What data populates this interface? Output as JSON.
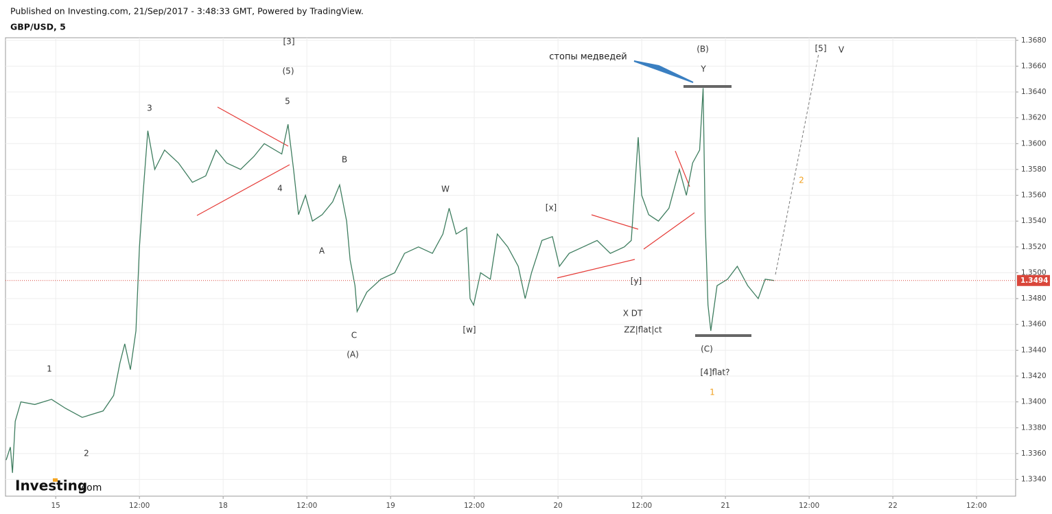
{
  "header": {
    "published": "Published on Investing.com, 21/Sep/2017 - 3:48:33 GMT, Powered by TradingView.",
    "symbol": "GBP/USD, 5",
    "logo": "Investing",
    "logo_suffix": ".com"
  },
  "chart_data": {
    "type": "line",
    "x": [
      -7.1,
      -6.5,
      -6.2,
      -5.8,
      -5.0,
      -3.0,
      -0.6,
      1.4,
      3.8,
      6.8,
      8.3,
      9.2,
      9.9,
      10.7,
      11.5,
      12.0,
      12.5,
      13.2,
      14.2,
      15.6,
      17.6,
      19.6,
      21.5,
      23.0,
      24.5,
      26.5,
      28.4,
      29.9,
      32.4,
      33.3,
      34.1,
      34.8,
      35.8,
      36.8,
      38.2,
      39.7,
      40.7,
      41.7,
      42.2,
      42.9,
      43.2,
      44.6,
      46.6,
      48.6,
      50.0,
      52.0,
      54.0,
      55.5,
      56.4,
      57.4,
      58.9,
      59.4,
      59.9,
      60.9,
      62.3,
      63.3,
      64.8,
      66.3,
      67.3,
      68.2,
      69.7,
      71.2,
      72.2,
      73.6,
      75.6,
      77.6,
      79.5,
      81.5,
      82.5,
      83.5,
      84.0,
      85.0,
      86.4,
      87.9,
      89.4,
      90.4,
      91.3,
      92.3,
      92.8,
      93.1,
      93.5,
      93.9,
      94.8,
      96.3,
      97.7,
      99.2,
      100.7,
      101.7,
      103.0
    ],
    "series": [
      {
        "name": "GBP/USD",
        "color": "#3e7d5f",
        "values": [
          1.3355,
          1.3365,
          1.3345,
          1.3385,
          1.34,
          1.3398,
          1.3402,
          1.3395,
          1.3388,
          1.3393,
          1.3405,
          1.343,
          1.3445,
          1.3425,
          1.3455,
          1.352,
          1.356,
          1.361,
          1.358,
          1.3595,
          1.3585,
          1.357,
          1.3575,
          1.3595,
          1.3585,
          1.358,
          1.359,
          1.36,
          1.3592,
          1.3615,
          1.358,
          1.3545,
          1.356,
          1.354,
          1.3545,
          1.3555,
          1.3568,
          1.354,
          1.351,
          1.349,
          1.347,
          1.3485,
          1.3495,
          1.35,
          1.3515,
          1.352,
          1.3515,
          1.353,
          1.355,
          1.353,
          1.3535,
          1.348,
          1.3475,
          1.35,
          1.3495,
          1.353,
          1.352,
          1.3505,
          1.348,
          1.35,
          1.3525,
          1.3528,
          1.3505,
          1.3515,
          1.352,
          1.3525,
          1.3515,
          1.352,
          1.3525,
          1.3605,
          1.356,
          1.3545,
          1.354,
          1.355,
          1.358,
          1.356,
          1.3585,
          1.3595,
          1.3643,
          1.354,
          1.3475,
          1.3455,
          1.349,
          1.3495,
          1.3505,
          1.349,
          1.348,
          1.3495,
          1.3494
        ]
      }
    ],
    "xlim": [
      -7.2,
      137.6
    ],
    "xticks": [
      {
        "value": 0,
        "label": "15"
      },
      {
        "value": 12,
        "label": "12:00"
      },
      {
        "value": 24,
        "label": "18"
      },
      {
        "value": 36,
        "label": "12:00"
      },
      {
        "value": 48,
        "label": "19"
      },
      {
        "value": 60,
        "label": "12:00"
      },
      {
        "value": 72,
        "label": "20"
      },
      {
        "value": 84,
        "label": "12:00"
      },
      {
        "value": 96,
        "label": "21"
      },
      {
        "value": 108,
        "label": "12:00"
      },
      {
        "value": 120,
        "label": "22"
      },
      {
        "value": 132,
        "label": "12:00"
      }
    ],
    "ylim": [
      1.3327,
      1.3682
    ],
    "yticks": [
      {
        "value": 1.334,
        "label": "1.3340"
      },
      {
        "value": 1.336,
        "label": "1.3360"
      },
      {
        "value": 1.338,
        "label": "1.3380"
      },
      {
        "value": 1.34,
        "label": "1.3400"
      },
      {
        "value": 1.342,
        "label": "1.3420"
      },
      {
        "value": 1.344,
        "label": "1.3440"
      },
      {
        "value": 1.346,
        "label": "1.3460"
      },
      {
        "value": 1.348,
        "label": "1.3480"
      },
      {
        "value": 1.35,
        "label": "1.3500"
      },
      {
        "value": 1.352,
        "label": "1.3520"
      },
      {
        "value": 1.354,
        "label": "1.3540"
      },
      {
        "value": 1.356,
        "label": "1.3560"
      },
      {
        "value": 1.358,
        "label": "1.3580"
      },
      {
        "value": 1.36,
        "label": "1.3600"
      },
      {
        "value": 1.362,
        "label": "1.3620"
      },
      {
        "value": 1.364,
        "label": "1.3640"
      },
      {
        "value": 1.366,
        "label": "1.3660"
      },
      {
        "value": 1.368,
        "label": "1.3680"
      }
    ],
    "grid": true,
    "last_price": 1.3494,
    "last_price_color": "#d9463a",
    "annotations": [
      {
        "text": "[3]",
        "color": "#333"
      },
      {
        "text": "(5)",
        "color": "#333"
      },
      {
        "text": "5",
        "color": "#333"
      },
      {
        "text": "3",
        "color": "#333"
      },
      {
        "text": "4",
        "color": "#333"
      },
      {
        "text": "B",
        "color": "#333"
      },
      {
        "text": "A",
        "color": "#333"
      },
      {
        "text": "C",
        "color": "#333"
      },
      {
        "text": "(A)",
        "color": "#333"
      },
      {
        "text": "W",
        "color": "#333"
      },
      {
        "text": "[x]",
        "color": "#333"
      },
      {
        "text": "[w]",
        "color": "#333"
      },
      {
        "text": "[y]",
        "color": "#333"
      },
      {
        "text": "X DT",
        "color": "#333"
      },
      {
        "text": "ZZ|flat|ct",
        "color": "#333"
      },
      {
        "text": "(B)",
        "color": "#333"
      },
      {
        "text": "Y",
        "color": "#333"
      },
      {
        "text": "стопы медведей",
        "color": "#222"
      },
      {
        "text": "[5]",
        "color": "#333"
      },
      {
        "text": "V",
        "color": "#333"
      },
      {
        "text": "2",
        "color": "#f0a020"
      },
      {
        "text": "(C)",
        "color": "#333"
      },
      {
        "text": "[4]flat?",
        "color": "#333"
      },
      {
        "text": "1",
        "color": "#f0a020"
      },
      {
        "text": "1",
        "color": "#333"
      },
      {
        "text": "2",
        "color": "#333"
      }
    ]
  }
}
